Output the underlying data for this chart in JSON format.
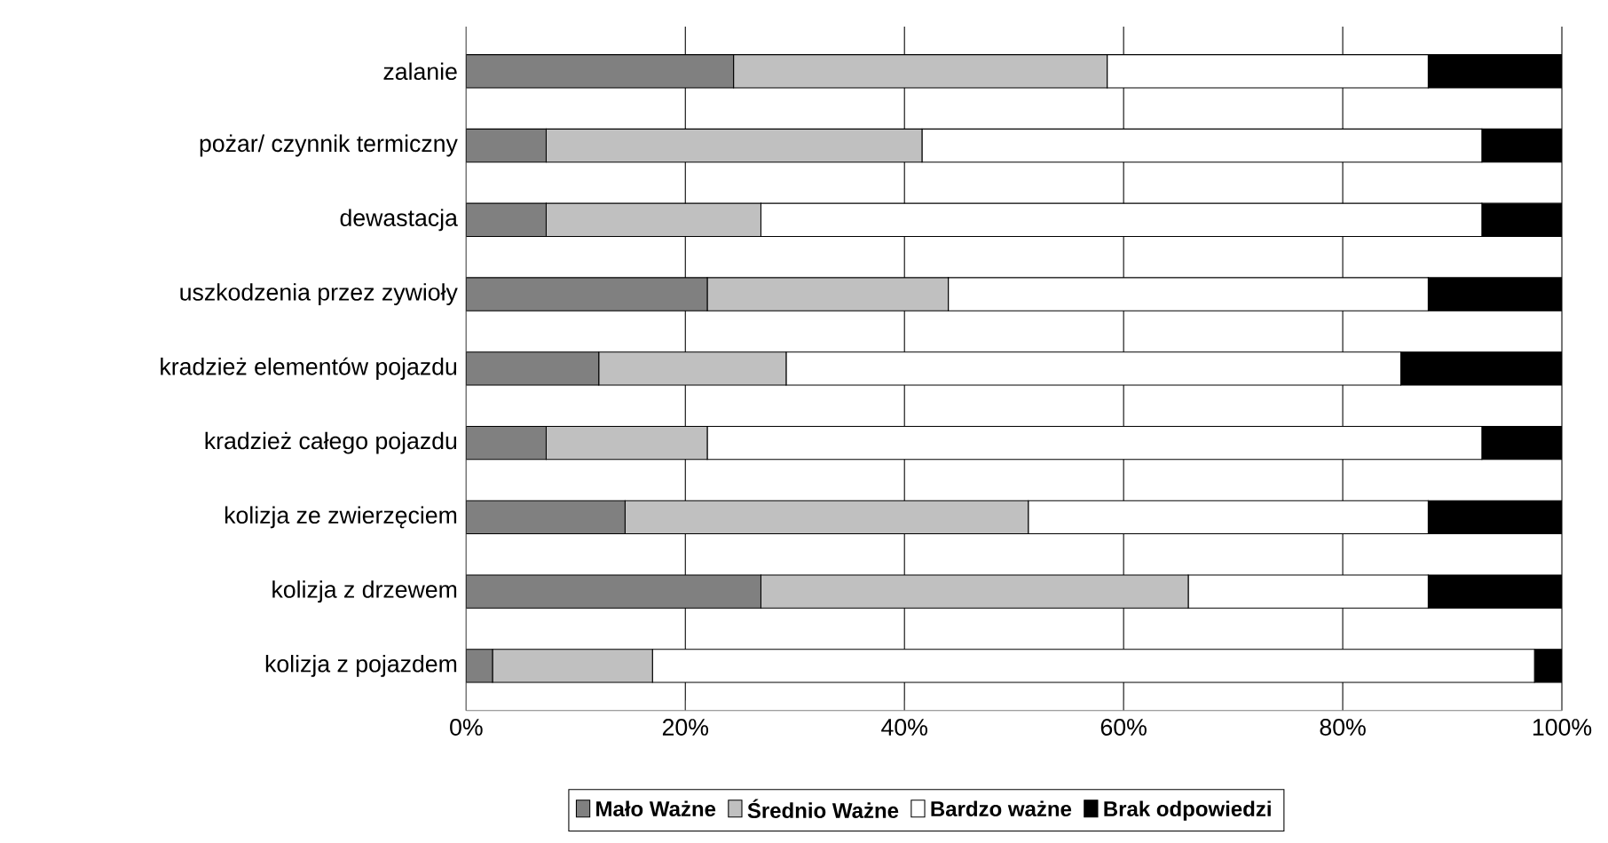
{
  "chart_data": {
    "type": "bar",
    "orientation": "horizontal",
    "stacked": true,
    "categories": [
      "zalanie",
      "pożar/ czynnik termiczny",
      "dewastacja",
      "uszkodzenia przez zywioły",
      "kradzież elementów pojazdu",
      "kradzież całego pojazdu",
      "kolizja ze zwierzęciem",
      "kolizja z drzewem",
      "kolizja z pojazdem"
    ],
    "series": [
      {
        "name": "Mało Ważne",
        "color": "#808080",
        "values": [
          24.4,
          7.3,
          7.3,
          22.0,
          12.1,
          7.3,
          14.5,
          26.9,
          2.4
        ]
      },
      {
        "name": "Średnio Ważne",
        "color": "#c0c0c0",
        "values": [
          34.1,
          34.3,
          19.6,
          22.0,
          17.1,
          14.7,
          36.8,
          39.0,
          14.6
        ]
      },
      {
        "name": "Bardzo ważne",
        "color": "#ffffff",
        "values": [
          29.3,
          51.1,
          65.8,
          43.8,
          56.1,
          70.7,
          36.5,
          21.9,
          80.5
        ]
      },
      {
        "name": "Brak odpowiedzi",
        "color": "#000000",
        "values": [
          12.2,
          7.3,
          7.3,
          12.2,
          14.7,
          7.3,
          12.2,
          12.2,
          2.5
        ]
      }
    ],
    "xlim": [
      0,
      100
    ],
    "xticks": [
      {
        "value": 0,
        "label": "0%"
      },
      {
        "value": 20,
        "label": "20%"
      },
      {
        "value": 40,
        "label": "40%"
      },
      {
        "value": 60,
        "label": "60%"
      },
      {
        "value": 80,
        "label": "80%"
      },
      {
        "value": 100,
        "label": "100%"
      }
    ],
    "grid": "x",
    "legend": "bottom"
  }
}
